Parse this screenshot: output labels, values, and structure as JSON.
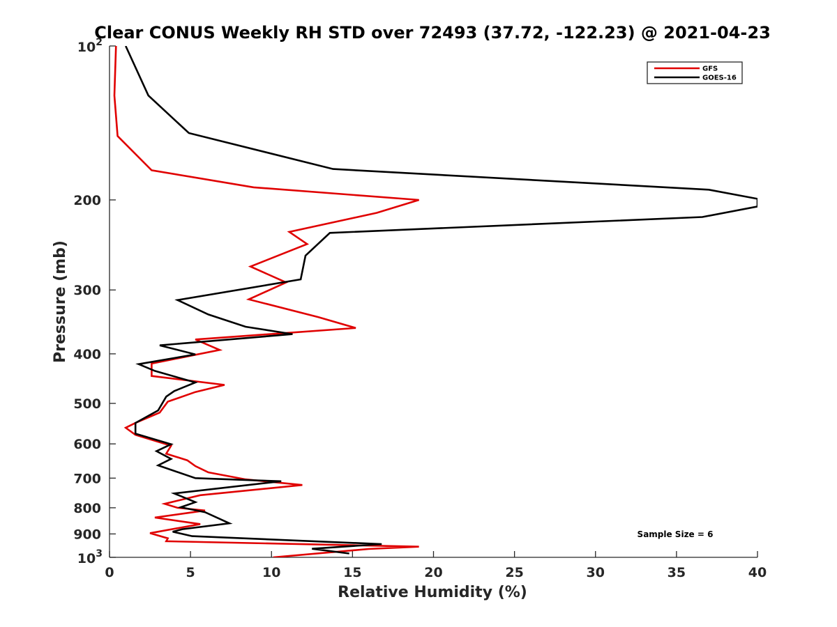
{
  "chart_data": {
    "type": "line",
    "title": "Clear CONUS Weekly RH STD over 72493 (37.72, -122.23) @ 2021-04-23",
    "xlabel": "Relative Humidity (%)",
    "ylabel": "Pressure (mb)",
    "xlim": [
      0,
      40
    ],
    "ylim": [
      100,
      1000
    ],
    "yscale": "log",
    "y_reversed": true,
    "grid": false,
    "legend_position": "top-right",
    "annotation": "Sample Size = 6",
    "xticks": [
      0,
      5,
      10,
      15,
      20,
      25,
      30,
      35,
      40
    ],
    "xtick_labels": [
      "0",
      "5",
      "10",
      "15",
      "20",
      "25",
      "30",
      "35",
      "40"
    ],
    "yticks": [
      100,
      200,
      300,
      400,
      500,
      600,
      700,
      800,
      900,
      1000
    ],
    "ytick_labels": [
      {
        "base": "10",
        "exp": "2"
      },
      {
        "base": "200",
        "exp": ""
      },
      {
        "base": "300",
        "exp": ""
      },
      {
        "base": "400",
        "exp": ""
      },
      {
        "base": "500",
        "exp": ""
      },
      {
        "base": "600",
        "exp": ""
      },
      {
        "base": "700",
        "exp": ""
      },
      {
        "base": "800",
        "exp": ""
      },
      {
        "base": "900",
        "exp": ""
      },
      {
        "base": "10",
        "exp": "3"
      }
    ],
    "series": [
      {
        "name": "GFS",
        "color": "#e00000",
        "points": [
          [
            0.4,
            100
          ],
          [
            0.3,
            125
          ],
          [
            0.5,
            150
          ],
          [
            2.6,
            175
          ],
          [
            8.9,
            189
          ],
          [
            19.1,
            200
          ],
          [
            16.5,
            212
          ],
          [
            11.1,
            231
          ],
          [
            12.2,
            244
          ],
          [
            8.7,
            270
          ],
          [
            10.9,
            290
          ],
          [
            8.6,
            313
          ],
          [
            12.9,
            339
          ],
          [
            15.2,
            356
          ],
          [
            5.3,
            375
          ],
          [
            6.8,
            393
          ],
          [
            2.6,
            418
          ],
          [
            2.6,
            442
          ],
          [
            7.1,
            460
          ],
          [
            5.3,
            475
          ],
          [
            3.6,
            496
          ],
          [
            3.1,
            521
          ],
          [
            1.6,
            546
          ],
          [
            1.0,
            558
          ],
          [
            1.6,
            576
          ],
          [
            3.8,
            605
          ],
          [
            3.5,
            627
          ],
          [
            4.8,
            646
          ],
          [
            5.3,
            663
          ],
          [
            6.1,
            682
          ],
          [
            8.4,
            704
          ],
          [
            11.9,
            722
          ],
          [
            5.6,
            756
          ],
          [
            3.4,
            786
          ],
          [
            4.2,
            800
          ],
          [
            5.9,
            810
          ],
          [
            2.8,
            836
          ],
          [
            5.6,
            861
          ],
          [
            2.5,
            897
          ],
          [
            3.6,
            918
          ],
          [
            3.5,
            930
          ],
          [
            19.1,
            953
          ],
          [
            16.0,
            963
          ],
          [
            10.1,
            1000
          ]
        ]
      },
      {
        "name": "GOES-16",
        "color": "#000000",
        "points": [
          [
            1.0,
            100
          ],
          [
            2.4,
            125
          ],
          [
            4.9,
            148
          ],
          [
            13.8,
            174
          ],
          [
            37.0,
            191
          ],
          [
            40.0,
            199
          ],
          [
            40.0,
            206
          ],
          [
            36.6,
            216
          ],
          [
            13.6,
            232
          ],
          [
            12.1,
            257
          ],
          [
            11.8,
            286
          ],
          [
            4.2,
            314
          ],
          [
            6.1,
            335
          ],
          [
            8.4,
            354
          ],
          [
            11.3,
            366
          ],
          [
            3.1,
            385
          ],
          [
            5.3,
            401
          ],
          [
            1.8,
            419
          ],
          [
            2.8,
            432
          ],
          [
            5.3,
            455
          ],
          [
            4.0,
            473
          ],
          [
            3.5,
            485
          ],
          [
            3.0,
            516
          ],
          [
            1.6,
            546
          ],
          [
            1.6,
            573
          ],
          [
            3.8,
            601
          ],
          [
            2.9,
            620
          ],
          [
            3.8,
            642
          ],
          [
            3.0,
            661
          ],
          [
            5.3,
            700
          ],
          [
            10.6,
            710
          ],
          [
            4.0,
            750
          ],
          [
            5.3,
            780
          ],
          [
            4.4,
            798
          ],
          [
            5.9,
            816
          ],
          [
            7.4,
            858
          ],
          [
            4.5,
            881
          ],
          [
            3.9,
            891
          ],
          [
            5.1,
            909
          ],
          [
            16.8,
            942
          ],
          [
            12.5,
            962
          ],
          [
            14.8,
            983
          ]
        ]
      }
    ]
  }
}
